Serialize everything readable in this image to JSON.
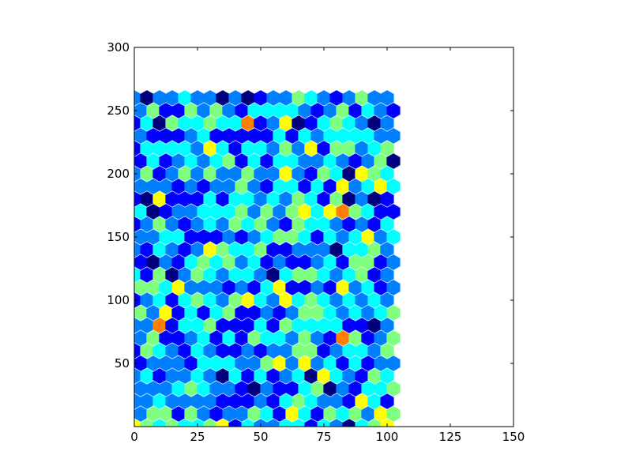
{
  "chart_data": {
    "type": "heatmap",
    "subtype": "hexbin",
    "title": "",
    "xlabel": "",
    "ylabel": "",
    "xlim": [
      0,
      150
    ],
    "ylim": [
      0,
      300
    ],
    "x_ticks": [
      0,
      25,
      50,
      75,
      100,
      125,
      150
    ],
    "x_tick_labels": [
      "0",
      "25",
      "50",
      "75",
      "100",
      "125",
      "150"
    ],
    "y_ticks": [
      50,
      100,
      150,
      200,
      250,
      300
    ],
    "y_tick_labels": [
      "50",
      "100",
      "150",
      "200",
      "250",
      "300"
    ],
    "grid": false,
    "legend": "none",
    "colormap": "jet",
    "value_range": [
      0,
      8
    ],
    "hex_grid": {
      "x_start": 0,
      "x_step": 5,
      "x_count": 21,
      "y_start": 0,
      "y_step": 10,
      "y_count": 27
    },
    "data_extent": {
      "x": [
        0,
        100
      ],
      "y": [
        0,
        255
      ]
    },
    "colors": {
      "background": "#ffffff",
      "axes_edge": "#000000",
      "jet_stops": [
        "#00007f",
        "#0000ff",
        "#007fff",
        "#00ffff",
        "#7fff7f",
        "#ffff00",
        "#ff7f00",
        "#ff0000",
        "#7f0000"
      ]
    },
    "cells_rows": [
      "543433451322331320345",
      "244142122431531434254",
      "223222211121343221531",
      "222343221021134021334",
      "231223203131230532143",
      "122213332245252313122",
      "143213211212244123324",
      "241123131433242164124",
      "226133411131433331102",
      "425131341121244323234",
      "123134324532534323232",
      "443522212135112152312",
      "314024323320344323412",
      "102134342312112314412",
      "213212543341122203342",
      "223311121234431323523",
      "124212324342143321213",
      "301223334242453564311",
      "105111313323243140201",
      "222121224213313152353",
      "241242422422521430543",
      "131232341313322321240",
      "133332531332425144234",
      "211123111113132333322",
      "130433433612501343202",
      "241142421333321241321",
      "202232202012243212422"
    ]
  }
}
